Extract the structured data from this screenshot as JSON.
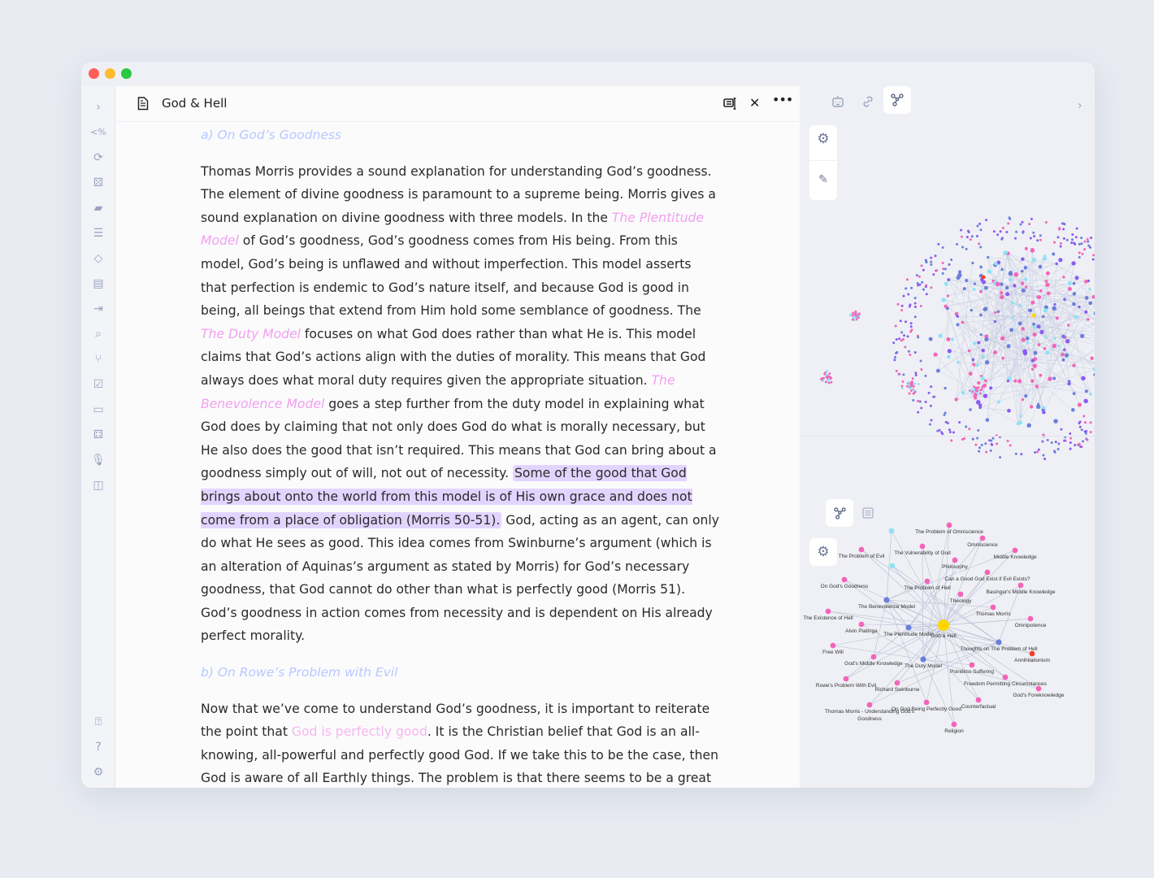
{
  "window": {
    "traffic_lights": [
      "#ff5f57",
      "#febc2e",
      "#28c840"
    ]
  },
  "tab": {
    "title": "God & Hell",
    "icons": [
      "document-icon",
      "reading-mode-icon",
      "close-icon",
      "more-icon"
    ]
  },
  "sidebar": {
    "icons": [
      "chevron-right-icon",
      "code-percent-icon",
      "link-refresh-icon",
      "dice-icon",
      "cards-icon",
      "stack-icon",
      "paint-bucket-icon",
      "abc-book-icon",
      "login-icon",
      "file-search-icon",
      "graph-icon",
      "calendar-check-icon",
      "slides-icon",
      "dice-five-icon",
      "microphone-icon",
      "layout-icon"
    ],
    "bottom_icons": [
      "vault-icon",
      "help-icon",
      "settings-icon"
    ]
  },
  "document": {
    "heading_a": "a) On God’s Goodness",
    "p1": [
      {
        "t": "Thomas Morris provides a sound explanation for understanding God’s goodness. The element of divine goodness is paramount to a supreme being. Morris gives a sound explanation on divine goodness with three models. In the "
      },
      {
        "t": "The Plentitude Model",
        "link": true
      },
      {
        "t": " of God’s goodness, God’s goodness comes from His being. From this model, God’s being is unflawed and without imperfection. This model asserts that perfection is endemic to God’s nature itself, and because God is good in being, all beings that extend from Him hold some semblance of goodness. The "
      },
      {
        "t": "The Duty Model",
        "link": true
      },
      {
        "t": " focuses on what God does rather than what He is. This model claims that God’s actions align with the duties of morality. This means that God always does what moral duty requires given the appropriate situation. "
      },
      {
        "t": "The Benevolence Model",
        "link": true
      },
      {
        "t": " goes a step further from the duty model in explaining what God does by claiming that not only does God do what is morally necessary, but He also does the good that isn’t required. This means that God can bring about a goodness simply out of will, not out of necessity. "
      },
      {
        "t": "Some of the good that God brings about onto the world from this model is of His own grace and does not come from a place of obligation (Morris 50-51).",
        "highlight": true
      },
      {
        "t": " God, acting as an agent, can only do what He sees as good. This idea comes from Swinburne’s argument (which is an alteration of Aquinas’s argument as stated by Morris) for God’s necessary goodness, that God cannot do other than what is perfectly good (Morris 51). God’s goodness in action comes from necessity and is dependent on His already perfect morality."
      }
    ],
    "heading_b": "b) On Rowe’s Problem with Evil",
    "p2": [
      {
        "t": "Now that we’ve come to understand God’s goodness, it is important to reiterate the point that "
      },
      {
        "t": "God is perfectly good",
        "link2": true
      },
      {
        "t": ". It is the Christian belief that God is an all-knowing, all-powerful and perfectly good God. If we take this to be the case, then God is aware of all Earthly things. The problem is that there seems to be a great deal of evil in our world. If God is perfectly good, then He would be able to cancel out all evil in"
      }
    ]
  },
  "right_panel": {
    "top_tabs": [
      "bot-icon",
      "link-icon",
      "graph-icon"
    ],
    "active_tab": "graph-icon",
    "global_graph_buttons": [
      "settings-icon",
      "magic-wand-icon"
    ],
    "local_tabs": [
      "graph-icon",
      "list-icon"
    ],
    "local_graph_buttons": [
      "settings-icon"
    ],
    "node_colors": {
      "center": "#ffd600",
      "note": "#f464b8",
      "model": "#6b7fdc",
      "attachment": "#8ee3f5",
      "tag": "#f0412f",
      "arrow": "#8a5cf0",
      "edge": "#b7bdd3"
    },
    "local_graph_nodes": [
      {
        "label": "God & Hell",
        "type": "center"
      },
      {
        "label": "The Problem of Omniscience",
        "type": "note"
      },
      {
        "label": "Omniscience",
        "type": "note"
      },
      {
        "label": "Middle Knowledge",
        "type": "note"
      },
      {
        "label": "The Problem of Evil",
        "type": "note"
      },
      {
        "label": "The Vulnerability of God",
        "type": "note"
      },
      {
        "label": "Philosophy",
        "type": "note"
      },
      {
        "label": "",
        "type": "attachment"
      },
      {
        "label": "",
        "type": "attachment"
      },
      {
        "label": "Can a Good God Exist if Evil Exists?",
        "type": "note"
      },
      {
        "label": "On God's Goodness",
        "type": "note"
      },
      {
        "label": "The Problem of Hell",
        "type": "note"
      },
      {
        "label": "Basinger's Middle Knowledge",
        "type": "note"
      },
      {
        "label": "Theology",
        "type": "note"
      },
      {
        "label": "The Benevolence Model",
        "type": "model"
      },
      {
        "label": "Thomas Morris",
        "type": "note"
      },
      {
        "label": "The Existence of Hell",
        "type": "note"
      },
      {
        "label": "Alvin Platinga",
        "type": "note"
      },
      {
        "label": "Omnipotence",
        "type": "note"
      },
      {
        "label": "The Plentitude Model",
        "type": "model"
      },
      {
        "label": "Thoughts on The Problem of Hell",
        "type": "model"
      },
      {
        "label": "Free Will",
        "type": "note"
      },
      {
        "label": "Annihilationism",
        "type": "tag"
      },
      {
        "label": "God's Middle Knowledge",
        "type": "note"
      },
      {
        "label": "The Duty Model",
        "type": "model"
      },
      {
        "label": "Pointless Suffering",
        "type": "note"
      },
      {
        "label": "Rowe's Problem With Evil",
        "type": "note"
      },
      {
        "label": "Freedom Permitting Circumstances",
        "type": "note"
      },
      {
        "label": "Richard Swinburne",
        "type": "note"
      },
      {
        "label": "God's Foreknowledge",
        "type": "note"
      },
      {
        "label": "Counterfactual",
        "type": "note"
      },
      {
        "label": "On God Being Perfectly Good",
        "type": "note"
      },
      {
        "label": "Thomas Morris - Understanding God's",
        "label2": "Goodness",
        "type": "note"
      },
      {
        "label": "Religion",
        "type": "note"
      }
    ]
  }
}
